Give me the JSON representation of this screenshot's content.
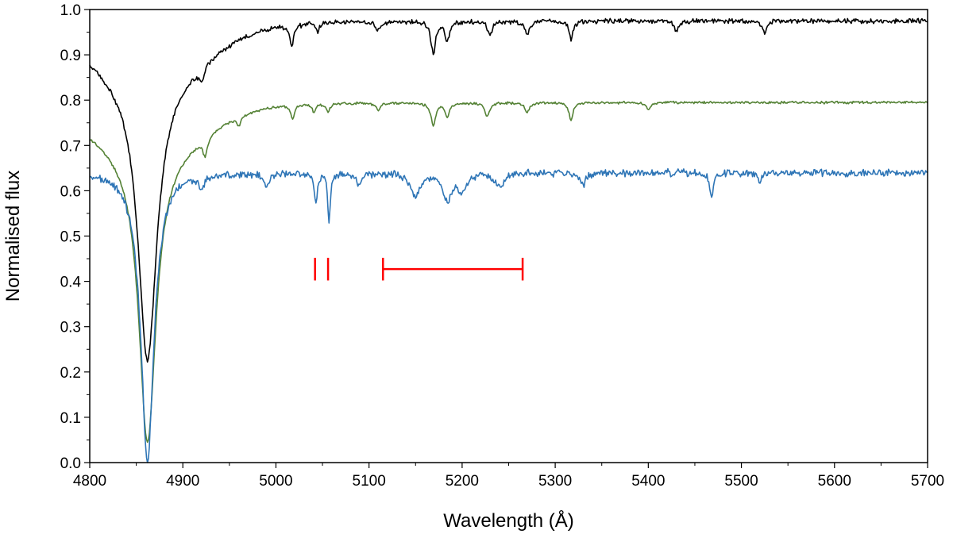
{
  "chart_data": {
    "type": "line",
    "xlabel": "Wavelength (Å)",
    "ylabel": "Normalised flux",
    "xlim": [
      4800,
      5700
    ],
    "ylim": [
      0.0,
      1.0
    ],
    "x_ticks": [
      4800,
      4900,
      5000,
      5100,
      5200,
      5300,
      5400,
      5500,
      5600,
      5700
    ],
    "x_tick_labels": [
      "4800",
      "4900",
      "5000",
      "5100",
      "5200",
      "5300",
      "5400",
      "5500",
      "5600",
      "5700"
    ],
    "y_ticks": [
      0.0,
      0.1,
      0.2,
      0.3,
      0.4,
      0.5,
      0.6,
      0.7,
      0.8,
      0.9,
      1.0
    ],
    "y_tick_labels": [
      "0.0",
      "0.1",
      "0.2",
      "0.3",
      "0.4",
      "0.5",
      "0.6",
      "0.7",
      "0.8",
      "0.9",
      "1.0"
    ],
    "grid": false,
    "legend": "none",
    "series": [
      {
        "color": "#000000",
        "continuum": 0.975,
        "noise": 0.008,
        "lines": [
          {
            "x": 4862,
            "depth": 0.62,
            "width": 12,
            "broad": 85,
            "broad_depth": 0.13
          },
          {
            "x": 4920,
            "depth": 0.03,
            "width": 3
          },
          {
            "x": 5017,
            "depth": 0.05,
            "width": 2.5
          },
          {
            "x": 5045,
            "depth": 0.02,
            "width": 2
          },
          {
            "x": 5110,
            "depth": 0.02,
            "width": 3
          },
          {
            "x": 5169,
            "depth": 0.07,
            "width": 3
          },
          {
            "x": 5184,
            "depth": 0.04,
            "width": 3
          },
          {
            "x": 5230,
            "depth": 0.03,
            "width": 3
          },
          {
            "x": 5270,
            "depth": 0.03,
            "width": 3
          },
          {
            "x": 5317,
            "depth": 0.04,
            "width": 2.5
          },
          {
            "x": 5430,
            "depth": 0.025,
            "width": 2.5
          },
          {
            "x": 5525,
            "depth": 0.025,
            "width": 2.5
          }
        ]
      },
      {
        "color": "#548235",
        "continuum": 0.795,
        "noise": 0.004,
        "lines": [
          {
            "x": 4862,
            "depth": 0.64,
            "width": 11,
            "broad": 80,
            "broad_depth": 0.11
          },
          {
            "x": 4924,
            "depth": 0.04,
            "width": 3
          },
          {
            "x": 4960,
            "depth": 0.02,
            "width": 2.5
          },
          {
            "x": 5018,
            "depth": 0.03,
            "width": 2.5
          },
          {
            "x": 5041,
            "depth": 0.02,
            "width": 2
          },
          {
            "x": 5056,
            "depth": 0.02,
            "width": 2
          },
          {
            "x": 5110,
            "depth": 0.015,
            "width": 3
          },
          {
            "x": 5169,
            "depth": 0.05,
            "width": 3
          },
          {
            "x": 5184,
            "depth": 0.03,
            "width": 3
          },
          {
            "x": 5227,
            "depth": 0.03,
            "width": 3
          },
          {
            "x": 5270,
            "depth": 0.02,
            "width": 3
          },
          {
            "x": 5317,
            "depth": 0.04,
            "width": 2.5
          },
          {
            "x": 5400,
            "depth": 0.015,
            "width": 3
          }
        ]
      },
      {
        "color": "#2e75b6",
        "continuum": 0.64,
        "noise": 0.012,
        "lines": [
          {
            "x": 4862,
            "depth": 0.59,
            "width": 8,
            "broad": 18,
            "broad_depth": 0.05
          },
          {
            "x": 4920,
            "depth": 0.03,
            "width": 3
          },
          {
            "x": 4990,
            "depth": 0.03,
            "width": 3
          },
          {
            "x": 5043,
            "depth": 0.06,
            "width": 2
          },
          {
            "x": 5057,
            "depth": 0.11,
            "width": 1.6
          },
          {
            "x": 5090,
            "depth": 0.03,
            "width": 3
          },
          {
            "x": 5150,
            "depth": 0.05,
            "width": 6
          },
          {
            "x": 5184,
            "depth": 0.06,
            "width": 5
          },
          {
            "x": 5200,
            "depth": 0.04,
            "width": 6
          },
          {
            "x": 5240,
            "depth": 0.03,
            "width": 5
          },
          {
            "x": 5330,
            "depth": 0.03,
            "width": 3
          },
          {
            "x": 5468,
            "depth": 0.055,
            "width": 2.5
          },
          {
            "x": 5520,
            "depth": 0.02,
            "width": 3
          }
        ]
      }
    ],
    "annotations": [
      {
        "type": "tick",
        "x": 5042,
        "y_range": [
          0.402,
          0.452
        ],
        "color": "#ff0000"
      },
      {
        "type": "tick",
        "x": 5056,
        "y_range": [
          0.402,
          0.452
        ],
        "color": "#ff0000"
      },
      {
        "type": "range",
        "x_range": [
          5115,
          5265
        ],
        "y": 0.427,
        "cap_half": 0.025,
        "color": "#ff0000"
      }
    ]
  }
}
